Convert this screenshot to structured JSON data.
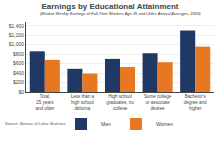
{
  "chart_data": {
    "type": "bar",
    "title": "Earnings by Educational Attainment",
    "subtitle": "(Median Weekly Earnings of Full-Time Workers Age 25 and Older, Annual Averages, 2009)",
    "source": "Source: Bureau of Labor Statistics",
    "categories": [
      "Total,\n25 years\nand older",
      "Less than a\nhigh school\ndiploma",
      "High school\ngraduates, no\ncollege",
      "Some college\nor associate\ndegree",
      "Bachelor's\ndegree and\nhigher"
    ],
    "series": [
      {
        "name": "Men",
        "color": "#1f3864",
        "values": [
          860,
          490,
          700,
          820,
          1300
        ]
      },
      {
        "name": "Women",
        "color": "#e87722",
        "values": [
          680,
          390,
          530,
          630,
          960
        ]
      }
    ],
    "ylim": [
      0,
      1480
    ],
    "yticks": [
      {
        "value": 0,
        "label": "$0"
      },
      {
        "value": 200,
        "label": "$200"
      },
      {
        "value": 400,
        "label": "$400"
      },
      {
        "value": 600,
        "label": "$600"
      },
      {
        "value": 800,
        "label": "$800"
      },
      {
        "value": 1000,
        "label": "$1,000"
      },
      {
        "value": 1200,
        "label": "$1,200"
      },
      {
        "value": 1400,
        "label": "$1,400"
      }
    ],
    "grid": true,
    "legend": "bottom"
  }
}
